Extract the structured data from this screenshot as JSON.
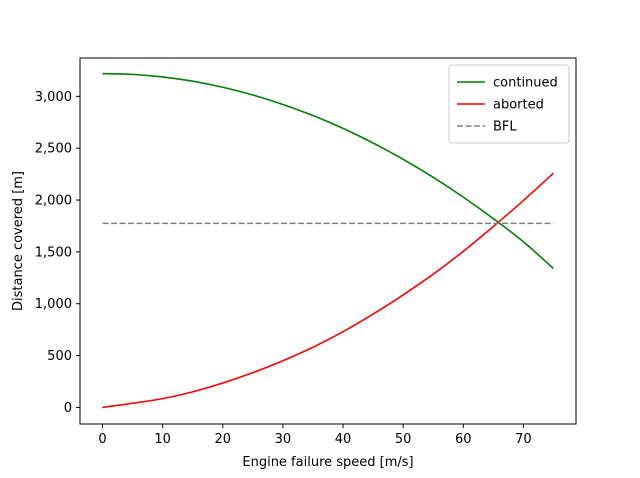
{
  "chart_data": {
    "type": "line",
    "title": "",
    "xlabel": "Engine failure speed [m/s]",
    "ylabel": "Distance covered [m]",
    "xlim": [
      -3.75,
      78.75
    ],
    "ylim": [
      -160,
      3370
    ],
    "xticks": [
      0,
      10,
      20,
      30,
      40,
      50,
      60,
      70
    ],
    "xtick_labels": [
      "0",
      "10",
      "20",
      "30",
      "40",
      "50",
      "60",
      "70"
    ],
    "yticks": [
      0,
      500,
      1000,
      1500,
      2000,
      2500,
      3000
    ],
    "ytick_labels": [
      "0",
      "500",
      "1,000",
      "1,500",
      "2,000",
      "2,500",
      "3,000"
    ],
    "grid": false,
    "legend_position": "top-right",
    "series": [
      {
        "name": "continued",
        "color": "#008000",
        "style": "solid",
        "x": [
          0,
          5,
          10,
          15,
          20,
          25,
          30,
          35,
          40,
          45,
          50,
          55,
          60,
          65,
          70,
          75
        ],
        "y": [
          3220,
          3212,
          3187,
          3146,
          3088,
          3013,
          2922,
          2815,
          2691,
          2550,
          2393,
          2219,
          2028,
          1821,
          1598,
          1340
        ]
      },
      {
        "name": "aborted",
        "color": "#ff0000",
        "style": "solid",
        "x": [
          0,
          5,
          10,
          15,
          20,
          25,
          30,
          35,
          40,
          45,
          50,
          55,
          60,
          65,
          70,
          75
        ],
        "y": [
          0,
          40,
          85,
          150,
          235,
          335,
          450,
          580,
          730,
          900,
          1085,
          1285,
          1505,
          1745,
          1995,
          2260
        ]
      },
      {
        "name": "BFL",
        "color": "#808080",
        "style": "dashed",
        "x": [
          0,
          75
        ],
        "y": [
          1775,
          1775
        ]
      }
    ]
  }
}
